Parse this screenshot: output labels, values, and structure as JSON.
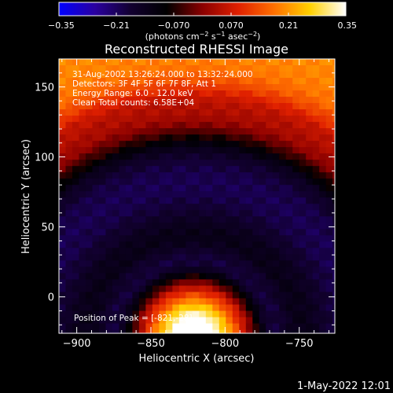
{
  "chart_data": {
    "type": "heatmap",
    "title": "Reconstructed RHESSI Image",
    "xlabel": "Heliocentric X (arcsec)",
    "ylabel": "Heliocentric Y (arcsec)",
    "xlim": [
      -912,
      -726
    ],
    "ylim": [
      -26,
      170
    ],
    "x_ticks": [
      -900,
      -850,
      -800,
      -750
    ],
    "y_ticks": [
      0,
      50,
      100,
      150
    ],
    "x_tick_labels": [
      "−900",
      "−850",
      "−800",
      "−750"
    ],
    "y_tick_labels": [
      "0",
      "50",
      "100",
      "150"
    ],
    "colorbar": {
      "min": -0.35,
      "max": 0.35,
      "tick_labels": [
        "−0.35",
        "−0.21",
        "−0.070",
        "0.070",
        "0.21",
        "0.35"
      ],
      "tick_values": [
        -0.35,
        -0.21,
        -0.07,
        0.07,
        0.21,
        0.35
      ],
      "units_prefix": "(photons cm",
      "units_exp1": "−2",
      "units_mid": " s",
      "units_exp2": "−1",
      "units_mid2": " asec",
      "units_exp3": "−2",
      "units_suffix": ")",
      "colors": [
        "#0000ff",
        "#2a00a0",
        "#120030",
        "#000000",
        "#8a0000",
        "#e02000",
        "#ff7000",
        "#ffd000",
        "#ffffff"
      ]
    },
    "annotations": [
      "31-Aug-2002 13:26:24.000 to 13:32:24.000",
      "Detectors: 3F 4F 5F 6F 7F 8F, Att 1",
      "Energy Range: 6.0 - 12.0 keV",
      "Clean     Total counts: 6.58E+04"
    ],
    "peak_label": "Position of Peak = [-821,-28]",
    "peak_position": [
      -821,
      -28
    ]
  },
  "footer": {
    "timestamp": "1-May-2022 12:01"
  }
}
